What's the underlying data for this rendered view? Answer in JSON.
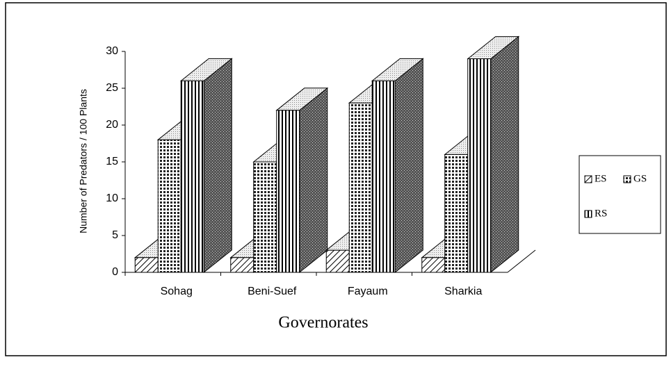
{
  "chart_data": {
    "type": "bar3d",
    "y_label": "Number of Predators / 100 Plants",
    "x_label": "Governorates",
    "categories": [
      "Sohag",
      "Beni-Suef",
      "Fayaum",
      "Sharkia"
    ],
    "series": [
      {
        "name": "ES",
        "color": "#000000",
        "pattern": "diagonal",
        "values": [
          2,
          2,
          3,
          2
        ]
      },
      {
        "name": "GS",
        "color": "#000000",
        "pattern": "cross",
        "values": [
          18,
          15,
          23,
          16
        ]
      },
      {
        "name": "RS",
        "color": "#000000",
        "pattern": "vertical",
        "values": [
          26,
          22,
          26,
          29
        ]
      }
    ],
    "ylim": [
      0,
      30
    ],
    "yticks": [
      0,
      5,
      10,
      15,
      20,
      25,
      30
    ],
    "legend": "right"
  }
}
